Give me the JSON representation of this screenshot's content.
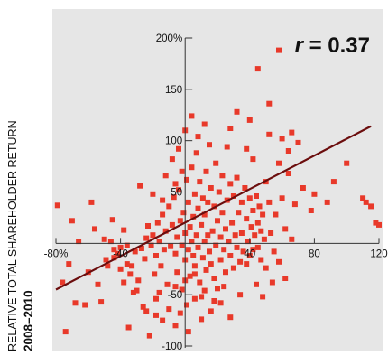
{
  "chart_data": {
    "type": "scatter",
    "title": "",
    "annotation": {
      "r_symbol": "r",
      "r_text": " = 0.37"
    },
    "ylabel_line1": "RELATIVE TOTAL SHAREHOLDER RETURN",
    "ylabel_line2": "2008–2010",
    "xlabel": "",
    "xlim": [
      -80,
      120
    ],
    "ylim": [
      -100,
      200
    ],
    "x_ticks": [
      {
        "value": -80,
        "label": "-80%"
      },
      {
        "value": -40,
        "label": "-40"
      },
      {
        "value": 40,
        "label": "40"
      },
      {
        "value": 80,
        "label": "80"
      },
      {
        "value": 120,
        "label": "120"
      }
    ],
    "y_ticks": [
      {
        "value": 200,
        "label": "200%"
      },
      {
        "value": 150,
        "label": "150"
      },
      {
        "value": 100,
        "label": "100"
      },
      {
        "value": 50,
        "label": "50"
      },
      {
        "value": -50,
        "label": "-50"
      },
      {
        "value": -100,
        "label": "-100"
      }
    ],
    "grid": false,
    "trendline": {
      "x": [
        -80,
        115
      ],
      "y": [
        -45,
        114
      ]
    },
    "colors": {
      "background": "#e6e6e6",
      "point": "#e8392a",
      "trendline": "#6b0d0d",
      "axis": "#333333",
      "text": "#111111"
    },
    "series": [
      {
        "points": [
          [
            -79,
            37
          ],
          [
            -68,
            -58
          ],
          [
            -74,
            -86
          ],
          [
            -52,
            -57
          ],
          [
            -49,
            -16
          ],
          [
            -44,
            -6
          ],
          [
            -40,
            -25
          ],
          [
            -38,
            -38
          ],
          [
            -45,
            23
          ],
          [
            -42,
            -10
          ],
          [
            -38,
            13
          ],
          [
            -36,
            -2
          ],
          [
            -33,
            -22
          ],
          [
            -31,
            -8
          ],
          [
            -29,
            -36
          ],
          [
            -27,
            -5
          ],
          [
            -36,
            -20
          ],
          [
            -32,
            -48
          ],
          [
            -25,
            -15
          ],
          [
            -24,
            5
          ],
          [
            -23,
            17
          ],
          [
            -21,
            -2
          ],
          [
            -20,
            8
          ],
          [
            -19,
            -30
          ],
          [
            -18,
            -12
          ],
          [
            -17,
            20
          ],
          [
            -16,
            2
          ],
          [
            -15,
            -22
          ],
          [
            -14,
            28
          ],
          [
            -13,
            -6
          ],
          [
            -12,
            12
          ],
          [
            -11,
            -40
          ],
          [
            -10,
            36
          ],
          [
            -9,
            -3
          ],
          [
            -8,
            18
          ],
          [
            -7,
            45
          ],
          [
            -6,
            -10
          ],
          [
            -5,
            6
          ],
          [
            -5,
            -28
          ],
          [
            -4,
            52
          ],
          [
            -3,
            22
          ],
          [
            -2,
            -2
          ],
          [
            -2,
            -45
          ],
          [
            -1,
            30
          ],
          [
            0,
            10
          ],
          [
            0,
            -16
          ],
          [
            1,
            62
          ],
          [
            1,
            -60
          ],
          [
            2,
            40
          ],
          [
            2,
            -6
          ],
          [
            3,
            16
          ],
          [
            3,
            -32
          ],
          [
            4,
            74
          ],
          [
            4,
            2
          ],
          [
            5,
            26
          ],
          [
            5,
            -12
          ],
          [
            6,
            48
          ],
          [
            6,
            -22
          ],
          [
            7,
            88
          ],
          [
            7,
            8
          ],
          [
            8,
            34
          ],
          [
            8,
            -4
          ],
          [
            9,
            60
          ],
          [
            9,
            -38
          ],
          [
            10,
            18
          ],
          [
            10,
            -52
          ],
          [
            11,
            44
          ],
          [
            11,
            -14
          ],
          [
            12,
            28
          ],
          [
            12,
            2
          ],
          [
            13,
            70
          ],
          [
            13,
            -26
          ],
          [
            14,
            40
          ],
          [
            14,
            8
          ],
          [
            15,
            96
          ],
          [
            15,
            -8
          ],
          [
            16,
            54
          ],
          [
            16,
            -20
          ],
          [
            17,
            12
          ],
          [
            18,
            36
          ],
          [
            18,
            -34
          ],
          [
            19,
            78
          ],
          [
            19,
            -2
          ],
          [
            20,
            22
          ],
          [
            20,
            -44
          ],
          [
            21,
            50
          ],
          [
            22,
            6
          ],
          [
            22,
            -16
          ],
          [
            23,
            66
          ],
          [
            23,
            30
          ],
          [
            24,
            -6
          ],
          [
            25,
            14
          ],
          [
            25,
            -28
          ],
          [
            26,
            94
          ],
          [
            26,
            42
          ],
          [
            27,
            2
          ],
          [
            28,
            58
          ],
          [
            28,
            -12
          ],
          [
            29,
            20
          ],
          [
            30,
            46
          ],
          [
            30,
            -24
          ],
          [
            31,
            8
          ],
          [
            32,
            64
          ],
          [
            32,
            -4
          ],
          [
            33,
            30
          ],
          [
            34,
            -18
          ],
          [
            35,
            40
          ],
          [
            35,
            10
          ],
          [
            36,
            -8
          ],
          [
            37,
            54
          ],
          [
            38,
            24
          ],
          [
            38,
            -20
          ],
          [
            39,
            2
          ],
          [
            40,
            44
          ],
          [
            40,
            -12
          ],
          [
            41,
            16
          ],
          [
            42,
            32
          ],
          [
            42,
            -6
          ],
          [
            43,
            8
          ],
          [
            44,
            46
          ],
          [
            45,
            20
          ],
          [
            45,
            -4
          ],
          [
            46,
            36
          ],
          [
            47,
            12
          ],
          [
            47,
            -16
          ],
          [
            48,
            28
          ],
          [
            49,
            4
          ],
          [
            50,
            60
          ],
          [
            50,
            -24
          ],
          [
            52,
            40
          ],
          [
            53,
            10
          ],
          [
            55,
            -8
          ],
          [
            56,
            28
          ],
          [
            58,
            78
          ],
          [
            58,
            -18
          ],
          [
            60,
            44
          ],
          [
            62,
            14
          ],
          [
            64,
            68
          ],
          [
            66,
            4
          ],
          [
            68,
            38
          ],
          [
            52,
            136
          ],
          [
            52,
            106
          ],
          [
            38,
            92
          ],
          [
            45,
            170
          ],
          [
            58,
            188
          ],
          [
            40,
            120
          ],
          [
            32,
            128
          ],
          [
            28,
            112
          ],
          [
            42,
            82
          ],
          [
            60,
            102
          ],
          [
            66,
            108
          ],
          [
            64,
            90
          ],
          [
            70,
            98
          ],
          [
            73,
            54
          ],
          [
            80,
            48
          ],
          [
            78,
            32
          ],
          [
            88,
            40
          ],
          [
            92,
            60
          ],
          [
            100,
            78
          ],
          [
            110,
            44
          ],
          [
            112,
            40
          ],
          [
            115,
            36
          ],
          [
            118,
            20
          ],
          [
            120,
            18
          ],
          [
            -58,
            40
          ],
          [
            -70,
            22
          ],
          [
            -62,
            -60
          ],
          [
            -56,
            14
          ],
          [
            -54,
            -40
          ],
          [
            -48,
            -22
          ],
          [
            -46,
            2
          ],
          [
            -35,
            -82
          ],
          [
            -22,
            -90
          ],
          [
            -14,
            -75
          ],
          [
            -10,
            -64
          ],
          [
            -6,
            -80
          ],
          [
            -3,
            -68
          ],
          [
            2,
            -86
          ],
          [
            6,
            -54
          ],
          [
            10,
            -74
          ],
          [
            16,
            -66
          ],
          [
            22,
            -58
          ],
          [
            28,
            -72
          ],
          [
            34,
            -50
          ],
          [
            44,
            -40
          ],
          [
            48,
            -52
          ],
          [
            54,
            -38
          ],
          [
            62,
            -34
          ],
          [
            -26,
            -62
          ],
          [
            -18,
            -54
          ],
          [
            -30,
            -46
          ],
          [
            -28,
            56
          ],
          [
            -20,
            48
          ],
          [
            -12,
            66
          ],
          [
            -8,
            82
          ],
          [
            -4,
            92
          ],
          [
            0,
            110
          ],
          [
            4,
            124
          ],
          [
            8,
            104
          ],
          [
            12,
            116
          ],
          [
            -2,
            70
          ],
          [
            -6,
            58
          ],
          [
            -14,
            42
          ],
          [
            -18,
            -70
          ],
          [
            -24,
            -66
          ],
          [
            -16,
            -48
          ],
          [
            -6,
            -42
          ],
          [
            0,
            -36
          ],
          [
            6,
            -30
          ],
          [
            12,
            -46
          ],
          [
            18,
            -56
          ],
          [
            24,
            -42
          ],
          [
            -34,
            -30
          ],
          [
            -40,
            -4
          ],
          [
            -44,
            -14
          ],
          [
            -50,
            4
          ],
          [
            -60,
            -28
          ],
          [
            -66,
            2
          ],
          [
            -72,
            -20
          ],
          [
            -76,
            -38
          ]
        ]
      }
    ]
  }
}
